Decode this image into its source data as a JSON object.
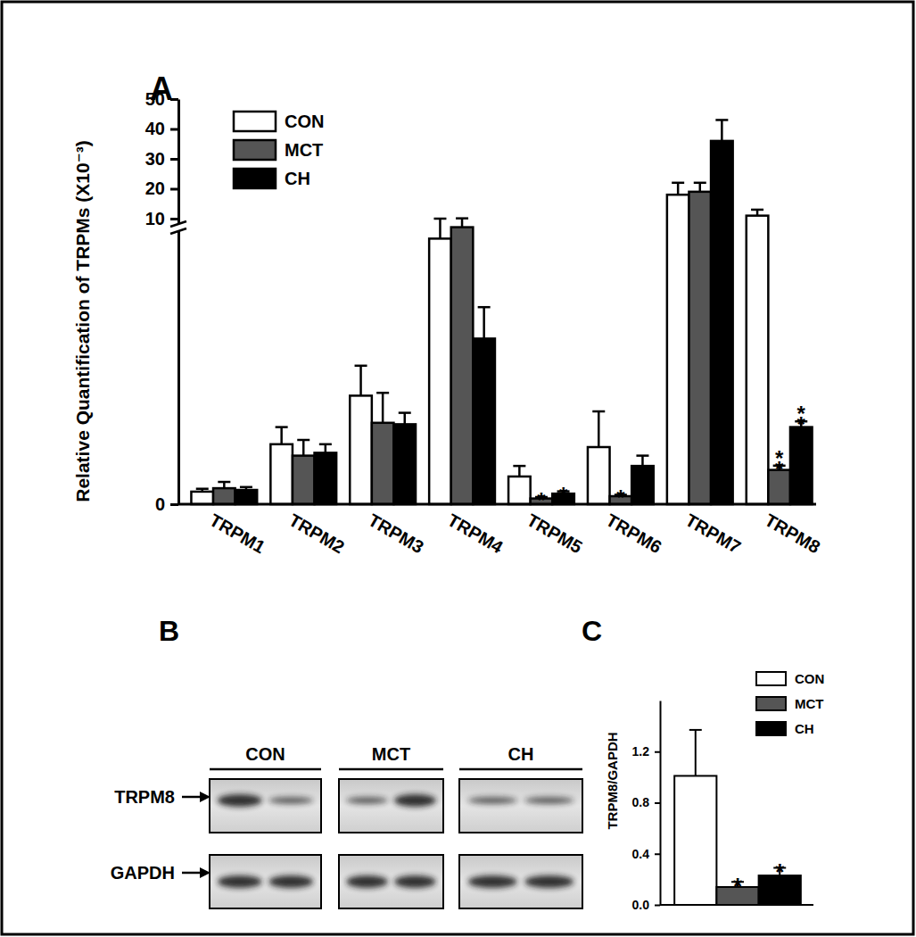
{
  "chart_data": [
    {
      "type": "bar",
      "title": "A",
      "y_label": "Relative Quantification of TRPMs (X10⁻³)",
      "categories": [
        "TRPM1",
        "TRPM2",
        "TRPM3",
        "TRPM4",
        "TRPM5",
        "TRPM6",
        "TRPM7",
        "TRPM8"
      ],
      "ylim": [
        0,
        50
      ],
      "yticks": [
        0,
        10,
        20,
        30,
        40,
        50
      ],
      "legend": "upper-left",
      "series": [
        {
          "name": "CON",
          "color": "#ffffff",
          "values": [
            0.44,
            2.1,
            3.8,
            9.3,
            0.97,
            2.0,
            18,
            11
          ],
          "errors": [
            0.1,
            0.6,
            1.05,
            0.7,
            0.37,
            1.25,
            4,
            2
          ],
          "annotations": [
            null,
            null,
            null,
            null,
            null,
            null,
            null,
            null
          ]
        },
        {
          "name": "MCT",
          "color": "#555555",
          "values": [
            0.56,
            1.7,
            2.85,
            9.7,
            0.2,
            0.28,
            19,
            1.2
          ],
          "errors": [
            0.22,
            0.55,
            1.05,
            0.4,
            0.05,
            0.05,
            3,
            0.15
          ],
          "annotations": [
            null,
            null,
            null,
            null,
            "*",
            "*",
            null,
            "**"
          ]
        },
        {
          "name": "CH",
          "color": "#000000",
          "values": [
            0.5,
            1.8,
            2.8,
            5.8,
            0.37,
            1.34,
            36,
            2.7
          ],
          "errors": [
            0.1,
            0.3,
            0.4,
            1.1,
            0.08,
            0.36,
            7,
            0.2
          ],
          "annotations": [
            null,
            null,
            null,
            null,
            "*",
            null,
            null,
            "**"
          ]
        }
      ]
    },
    {
      "type": "blot",
      "title": "B",
      "categories": [
        "CON",
        "MCT",
        "CH"
      ],
      "rows": [
        "TRPM8",
        "GAPDH"
      ]
    },
    {
      "type": "bar",
      "title": "C",
      "y_label": "TRPM8/GAPDH",
      "categories": [
        null
      ],
      "ylim": [
        0,
        1.6
      ],
      "yticks": [
        {
          "value": 0,
          "label": "0.0"
        },
        {
          "value": 0.4,
          "label": "0.4"
        },
        {
          "value": 0.8,
          "label": "0.8"
        },
        {
          "value": 1.2,
          "label": "1.2"
        }
      ],
      "tick_labels": "y",
      "legend": "upper-right",
      "series": [
        {
          "name": "CON",
          "color": "#ffffff",
          "values": [
            1.01
          ],
          "errors": [
            0.36
          ],
          "annotations": [
            null
          ]
        },
        {
          "name": "MCT",
          "color": "#555555",
          "values": [
            0.14
          ],
          "errors": [
            0.04
          ],
          "annotations": [
            "*"
          ]
        },
        {
          "name": "CH",
          "color": "#000000",
          "values": [
            0.23
          ],
          "errors": [
            0.06
          ],
          "annotations": [
            "*"
          ]
        }
      ]
    }
  ]
}
